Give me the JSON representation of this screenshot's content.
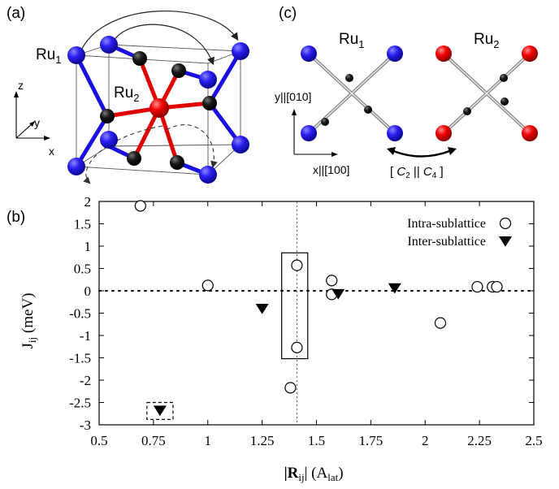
{
  "panels": {
    "a": {
      "label": "(a)",
      "ru1": "Ru",
      "ru1_sub": "1",
      "ru2": "Ru",
      "ru2_sub": "2",
      "axis_x": "x",
      "axis_y": "y",
      "axis_z": "z"
    },
    "c": {
      "label": "(c)",
      "ru1": "Ru",
      "ru1_sub": "1",
      "ru2": "Ru",
      "ru2_sub": "2",
      "axis_y": "y||[010]",
      "axis_x": "x||[100]",
      "symmetry_open": "[ ",
      "symmetry_c2": "C",
      "symmetry_c2_sub": "2",
      "symmetry_sep": " || ",
      "symmetry_c4": "C",
      "symmetry_c4_sub": "4",
      "symmetry_close": " ]"
    },
    "b": {
      "label": "(b)"
    }
  },
  "colors": {
    "ru1": "#1a10e0",
    "ru2": "#e80000",
    "ligand": "#111111"
  },
  "chart_data": {
    "type": "scatter",
    "xlabel_main": "|R",
    "xlabel_sub": "ij",
    "xlabel_unit": "| (A",
    "xlabel_unit_sub": "lat",
    "xlabel_close": ")",
    "ylabel_main": "J",
    "ylabel_sub": "ij",
    "ylabel_unit": " (meV)",
    "xlim": [
      0.5,
      2.5
    ],
    "ylim": [
      -3,
      2
    ],
    "xticks": [
      0.5,
      0.75,
      1,
      1.25,
      1.5,
      1.75,
      2,
      2.25,
      2.5
    ],
    "xtick_labels": [
      "0.5",
      "0.75",
      "1",
      "1.25",
      "1.5",
      "1.75",
      "2",
      "2.25",
      "2.5"
    ],
    "yticks": [
      2,
      1.5,
      1,
      0.5,
      0,
      -0.5,
      -1,
      -1.5,
      -2,
      -2.5,
      -3
    ],
    "ytick_labels": [
      "2",
      "1.5",
      "1",
      "0.5",
      "0",
      "-0.5",
      "-1",
      "-1.5",
      "-2",
      "-2.5",
      "-3"
    ],
    "legend_position": "top-right",
    "series": [
      {
        "name": "Intra-sublattice",
        "marker": "open-circle",
        "x": [
          0.69,
          1.0,
          1.38,
          1.41,
          1.41,
          1.57,
          1.57,
          2.07,
          2.24,
          2.31,
          2.33
        ],
        "y": [
          1.9,
          0.12,
          -2.17,
          0.57,
          -1.27,
          0.23,
          -0.08,
          -0.72,
          0.09,
          0.09,
          0.09
        ]
      },
      {
        "name": "Inter-sublattice",
        "marker": "filled-down-triangle",
        "x": [
          0.78,
          1.25,
          1.6,
          1.86
        ],
        "y": [
          -2.68,
          -0.4,
          -0.07,
          0.06
        ]
      }
    ],
    "reference_lines": {
      "horizontal_y": 0,
      "vertical_x": 1.41
    },
    "highlight_boxes": [
      {
        "style": "solid",
        "x_range": [
          1.34,
          1.46
        ],
        "y_range": [
          -1.52,
          0.85
        ]
      },
      {
        "style": "dashed",
        "x_range": [
          0.72,
          0.84
        ],
        "y_range": [
          -2.88,
          -2.5
        ]
      }
    ]
  }
}
